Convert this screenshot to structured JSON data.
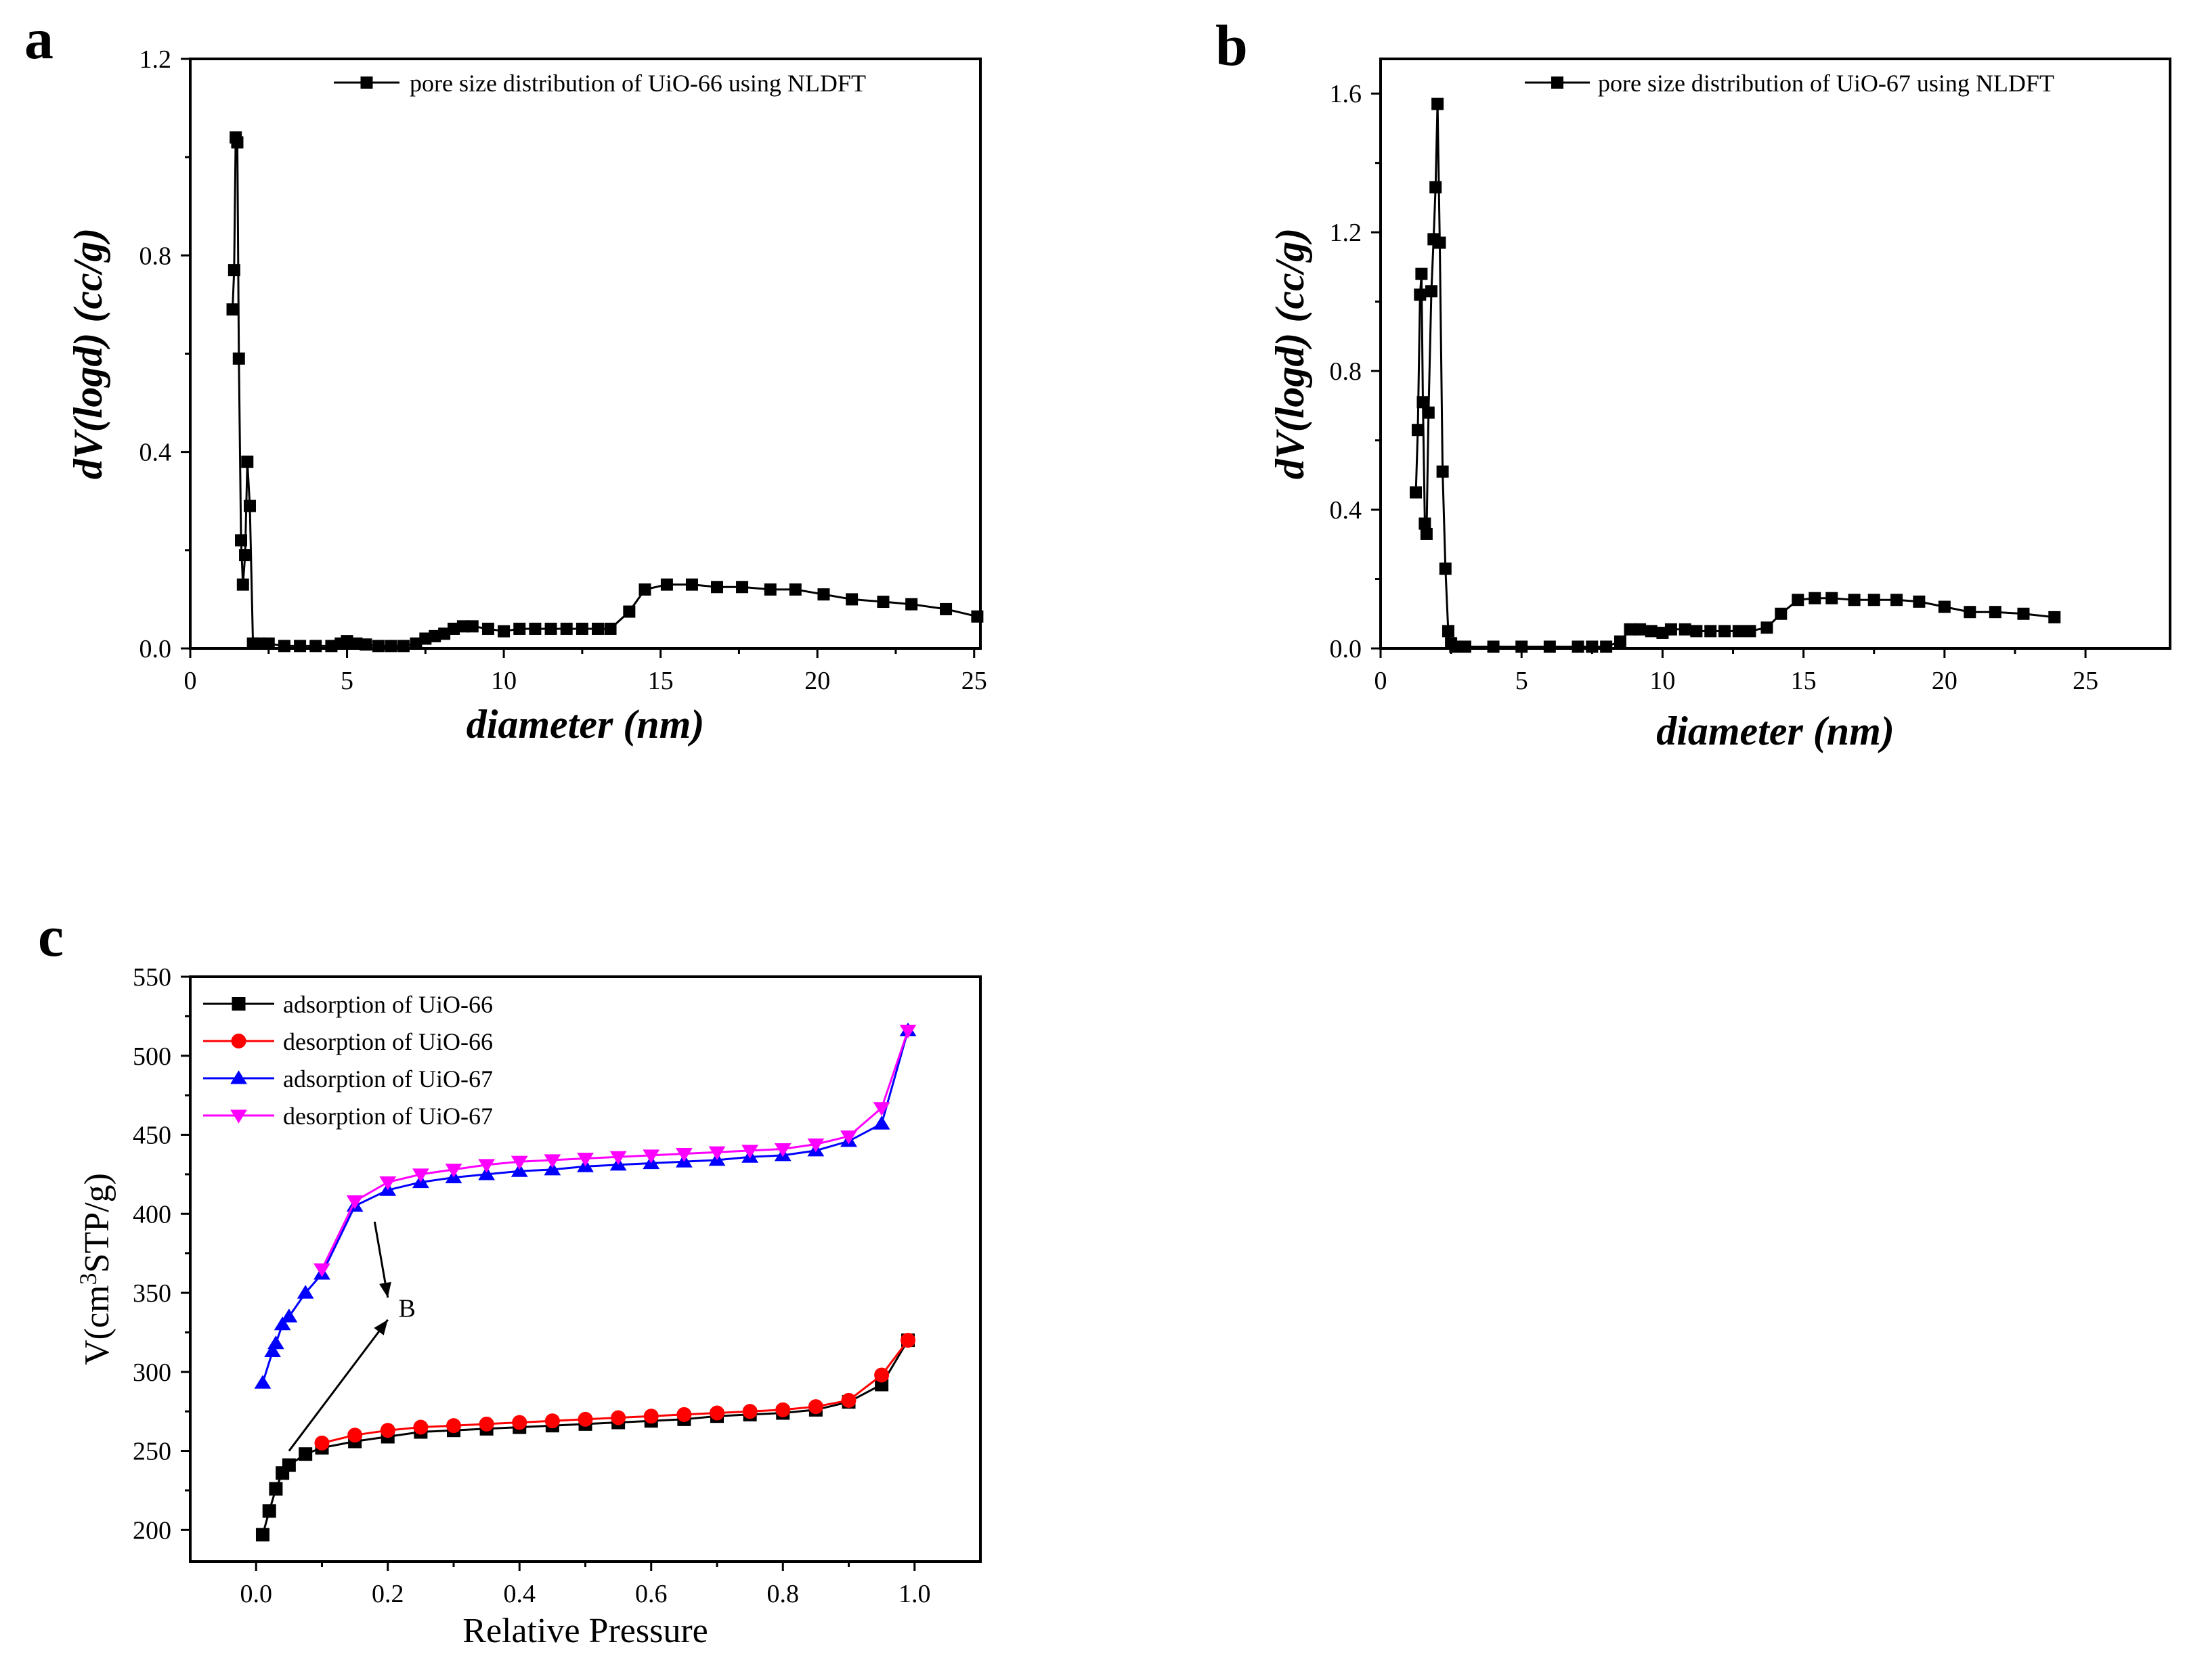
{
  "figure": {
    "panels": [
      "a",
      "b",
      "c"
    ]
  },
  "chart_data": [
    {
      "id": "a",
      "type": "line",
      "panel_label": "a",
      "title": "",
      "xlabel": "diameter (nm)",
      "ylabel": "dV(logd) (cc/g)",
      "xlim": [
        0,
        25.2
      ],
      "ylim": [
        0,
        1.2
      ],
      "xticks": [
        0,
        5,
        10,
        15,
        20,
        25
      ],
      "yticks": [
        0.0,
        0.4,
        0.8,
        1.2
      ],
      "xtick_labels": [
        "0",
        "5",
        "10",
        "15",
        "20",
        "25"
      ],
      "ytick_labels": [
        "0.0",
        "0.4",
        "0.8",
        "1.2"
      ],
      "legend_position": "top-right",
      "series": [
        {
          "name": "pore size distribution of UiO-66 using NLDFT",
          "color": "#000000",
          "marker": "square",
          "x": [
            1.35,
            1.4,
            1.45,
            1.5,
            1.55,
            1.62,
            1.68,
            1.75,
            1.82,
            1.9,
            2.0,
            2.2,
            2.5,
            3.0,
            3.5,
            4.0,
            4.5,
            4.8,
            5.0,
            5.3,
            5.6,
            6.0,
            6.4,
            6.8,
            7.2,
            7.5,
            7.8,
            8.1,
            8.4,
            8.7,
            9.0,
            9.5,
            10.0,
            10.5,
            11.0,
            11.5,
            12.0,
            12.5,
            13.0,
            13.4,
            14.0,
            14.5,
            15.2,
            16.0,
            16.8,
            17.6,
            18.5,
            19.3,
            20.2,
            21.1,
            22.1,
            23.0,
            24.1,
            25.1
          ],
          "y": [
            0.69,
            0.77,
            1.04,
            1.03,
            0.59,
            0.22,
            0.13,
            0.19,
            0.38,
            0.29,
            0.01,
            0.01,
            0.01,
            0.005,
            0.005,
            0.005,
            0.005,
            0.01,
            0.015,
            0.01,
            0.008,
            0.005,
            0.005,
            0.005,
            0.01,
            0.02,
            0.025,
            0.03,
            0.04,
            0.045,
            0.045,
            0.04,
            0.035,
            0.04,
            0.04,
            0.04,
            0.04,
            0.04,
            0.04,
            0.04,
            0.075,
            0.12,
            0.13,
            0.13,
            0.125,
            0.125,
            0.12,
            0.12,
            0.11,
            0.1,
            0.095,
            0.09,
            0.08,
            0.065
          ]
        }
      ]
    },
    {
      "id": "b",
      "type": "line",
      "panel_label": "b",
      "title": "",
      "xlabel": "diameter (nm)",
      "ylabel": "dV(logd) (cc/g)",
      "xlim": [
        0,
        28
      ],
      "ylim": [
        0,
        1.7
      ],
      "xticks": [
        0,
        5,
        10,
        15,
        20,
        25
      ],
      "yticks": [
        0.0,
        0.4,
        0.8,
        1.2,
        1.6
      ],
      "xtick_labels": [
        "0",
        "5",
        "10",
        "15",
        "20",
        "25"
      ],
      "ytick_labels": [
        "0.0",
        "0.4",
        "0.8",
        "1.2",
        "1.6"
      ],
      "legend_position": "top-right",
      "series": [
        {
          "name": "pore size distribution of UiO-67 using NLDFT",
          "color": "#000000",
          "marker": "square",
          "x": [
            1.25,
            1.32,
            1.4,
            1.45,
            1.5,
            1.57,
            1.63,
            1.7,
            1.8,
            1.88,
            1.95,
            2.02,
            2.1,
            2.2,
            2.3,
            2.4,
            2.5,
            2.65,
            3.0,
            4.0,
            5.0,
            6.0,
            7.0,
            7.5,
            8.0,
            8.5,
            8.85,
            9.2,
            9.6,
            10.0,
            10.3,
            10.8,
            11.2,
            11.7,
            12.2,
            12.7,
            13.1,
            13.7,
            14.2,
            14.8,
            15.4,
            16.0,
            16.8,
            17.5,
            18.3,
            19.1,
            20.0,
            20.9,
            21.8,
            22.8,
            23.9
          ],
          "y": [
            0.45,
            0.63,
            1.02,
            1.08,
            0.71,
            0.36,
            0.33,
            0.68,
            1.03,
            1.18,
            1.33,
            1.57,
            1.17,
            0.51,
            0.23,
            0.05,
            0.015,
            0.005,
            0.005,
            0.005,
            0.005,
            0.005,
            0.005,
            0.005,
            0.005,
            0.02,
            0.055,
            0.055,
            0.05,
            0.045,
            0.055,
            0.055,
            0.05,
            0.05,
            0.05,
            0.05,
            0.05,
            0.06,
            0.1,
            0.14,
            0.145,
            0.145,
            0.14,
            0.14,
            0.14,
            0.135,
            0.12,
            0.105,
            0.105,
            0.1,
            0.09
          ]
        }
      ]
    },
    {
      "id": "c",
      "type": "line",
      "panel_label": "c",
      "title": "",
      "xlabel": "Relative Pressure",
      "ylabel": "V(cm³STP/g)",
      "ylabel_main": "V(cm",
      "ylabel_sup": "3",
      "ylabel_tail": "STP/g)",
      "xlim": [
        -0.1,
        1.1
      ],
      "ylim": [
        180,
        550
      ],
      "xticks": [
        0.0,
        0.2,
        0.4,
        0.6,
        0.8,
        1.0
      ],
      "yticks": [
        200,
        250,
        300,
        350,
        400,
        450,
        500,
        550
      ],
      "xtick_labels": [
        "0.0",
        "0.2",
        "0.4",
        "0.6",
        "0.8",
        "1.0"
      ],
      "ytick_labels": [
        "200",
        "250",
        "300",
        "350",
        "400",
        "450",
        "500",
        "550"
      ],
      "legend_position": "top-left",
      "annotation": {
        "text": "B",
        "x": 0.21,
        "y": 340
      },
      "series": [
        {
          "name": "adsorption of UiO-66",
          "color": "#000000",
          "marker": "square",
          "x": [
            0.01,
            0.02,
            0.03,
            0.04,
            0.05,
            0.075,
            0.1,
            0.15,
            0.2,
            0.25,
            0.3,
            0.35,
            0.4,
            0.45,
            0.5,
            0.55,
            0.6,
            0.65,
            0.7,
            0.75,
            0.8,
            0.85,
            0.9,
            0.95,
            0.99
          ],
          "y": [
            197,
            212,
            226,
            236,
            241,
            248,
            252,
            256,
            259,
            262,
            263,
            264,
            265,
            266,
            267,
            268,
            269,
            270,
            272,
            273,
            274,
            276,
            281,
            292,
            320
          ]
        },
        {
          "name": "desorption of UiO-66",
          "color": "#ff0000",
          "marker": "circle",
          "x": [
            0.99,
            0.95,
            0.9,
            0.85,
            0.8,
            0.75,
            0.7,
            0.65,
            0.6,
            0.55,
            0.5,
            0.45,
            0.4,
            0.35,
            0.3,
            0.25,
            0.2,
            0.15,
            0.1
          ],
          "y": [
            320,
            298,
            282,
            278,
            276,
            275,
            274,
            273,
            272,
            271,
            270,
            269,
            268,
            267,
            266,
            265,
            263,
            260,
            255
          ]
        },
        {
          "name": "adsorption of UiO-67",
          "color": "#0000ff",
          "marker": "triangle-up",
          "x": [
            0.01,
            0.025,
            0.03,
            0.04,
            0.05,
            0.075,
            0.1,
            0.15,
            0.2,
            0.25,
            0.3,
            0.35,
            0.4,
            0.45,
            0.5,
            0.55,
            0.6,
            0.65,
            0.7,
            0.75,
            0.8,
            0.85,
            0.9,
            0.95,
            0.99
          ],
          "y": [
            293,
            313,
            318,
            330,
            335,
            350,
            362,
            405,
            415,
            420,
            423,
            425,
            427,
            428,
            430,
            431,
            432,
            433,
            434,
            436,
            437,
            440,
            446,
            457,
            516
          ]
        },
        {
          "name": "desorption of UiO-67",
          "color": "#ff00ff",
          "marker": "triangle-down",
          "x": [
            0.99,
            0.95,
            0.9,
            0.85,
            0.8,
            0.75,
            0.7,
            0.65,
            0.6,
            0.55,
            0.5,
            0.45,
            0.4,
            0.35,
            0.3,
            0.25,
            0.2,
            0.15,
            0.1
          ],
          "y": [
            516,
            467,
            449,
            444,
            441,
            440,
            439,
            438,
            437,
            436,
            435,
            434,
            433,
            431,
            428,
            425,
            420,
            408,
            365
          ]
        }
      ]
    }
  ]
}
